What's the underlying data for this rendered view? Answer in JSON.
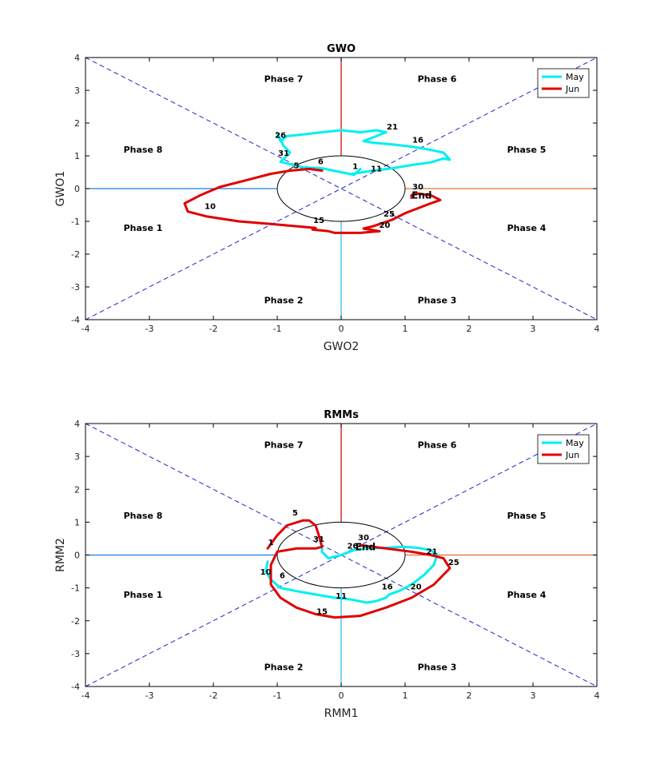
{
  "chart_data": [
    {
      "type": "line",
      "title": "GWO",
      "xlabel": "GWO2",
      "ylabel": "GWO1",
      "xlim": [
        -4,
        4
      ],
      "ylim": [
        -4,
        4
      ],
      "xticks": [
        "-4",
        "-3",
        "-2",
        "-1",
        "0",
        "1",
        "2",
        "3",
        "4"
      ],
      "yticks": [
        "4",
        "3",
        "2",
        "1",
        "0",
        "-1",
        "-2",
        "-3",
        "-4"
      ],
      "grid": false,
      "legend": "top-right",
      "phase_labels": [
        {
          "text": "Phase 7",
          "x": -0.9,
          "y": 3.35
        },
        {
          "text": "Phase 6",
          "x": 1.5,
          "y": 3.35
        },
        {
          "text": "Phase 8",
          "x": -3.1,
          "y": 1.2
        },
        {
          "text": "Phase 5",
          "x": 2.9,
          "y": 1.2
        },
        {
          "text": "Phase 1",
          "x": -3.1,
          "y": -1.2
        },
        {
          "text": "Phase 4",
          "x": 2.9,
          "y": -1.2
        },
        {
          "text": "Phase 2",
          "x": -0.9,
          "y": -3.4
        },
        {
          "text": "Phase 3",
          "x": 1.5,
          "y": -3.4
        }
      ],
      "series": [
        {
          "name": "May",
          "color": "#00f0f0",
          "x": [
            0.17,
            0.5,
            0.8,
            1.1,
            1.4,
            1.6,
            1.7,
            1.6,
            1.35,
            1.1,
            0.8,
            0.5,
            0.35,
            0.55,
            0.7,
            0.55,
            0.3,
            0.0,
            -0.3,
            -0.6,
            -0.85,
            -0.95,
            -1.0,
            -0.9,
            -0.8,
            -0.95,
            -0.6,
            -0.3,
            0.0,
            0.2,
            0.3
          ],
          "y": [
            0.45,
            0.55,
            0.62,
            0.72,
            0.8,
            0.92,
            0.88,
            1.1,
            1.2,
            1.28,
            1.35,
            1.4,
            1.45,
            1.6,
            1.72,
            1.78,
            1.72,
            1.78,
            1.72,
            1.65,
            1.6,
            1.45,
            1.7,
            1.3,
            1.1,
            0.82,
            0.65,
            0.62,
            0.5,
            0.42,
            0.6
          ]
        },
        {
          "name": "Jun",
          "color": "#e00000",
          "x": [
            -0.3,
            -0.5,
            -0.8,
            -1.1,
            -1.5,
            -1.9,
            -2.2,
            -2.45,
            -2.4,
            -2.1,
            -1.6,
            -1.1,
            -0.7,
            -0.4,
            -0.45,
            -0.2,
            -0.1,
            0.3,
            0.6,
            0.35,
            0.5,
            0.8,
            1.0,
            1.2,
            1.4,
            1.55,
            1.4,
            1.2,
            1.1,
            1.1
          ],
          "y": [
            0.55,
            0.6,
            0.55,
            0.45,
            0.25,
            0.05,
            -0.2,
            -0.45,
            -0.7,
            -0.85,
            -1.0,
            -1.08,
            -1.15,
            -1.2,
            -1.25,
            -1.3,
            -1.35,
            -1.35,
            -1.3,
            -1.22,
            -1.15,
            -0.95,
            -0.75,
            -0.6,
            -0.45,
            -0.35,
            -0.2,
            -0.15,
            -0.2,
            -0.28
          ]
        }
      ],
      "day_labels": [
        {
          "text": "1",
          "x": 0.22,
          "y": 0.6
        },
        {
          "text": "11",
          "x": 0.55,
          "y": 0.52
        },
        {
          "text": "16",
          "x": 1.2,
          "y": 1.4
        },
        {
          "text": "21",
          "x": 0.8,
          "y": 1.8
        },
        {
          "text": "26",
          "x": -0.95,
          "y": 1.55
        },
        {
          "text": "31",
          "x": -0.9,
          "y": 1.0
        },
        {
          "text": "5",
          "x": -0.7,
          "y": 0.62
        },
        {
          "text": "6",
          "x": -0.32,
          "y": 0.75
        },
        {
          "text": "10",
          "x": -2.05,
          "y": -0.62
        },
        {
          "text": "15",
          "x": -0.35,
          "y": -1.05
        },
        {
          "text": "20",
          "x": 0.68,
          "y": -1.2
        },
        {
          "text": "25",
          "x": 0.75,
          "y": -0.85
        },
        {
          "text": "30",
          "x": 1.2,
          "y": -0.02
        },
        {
          "text": "End",
          "x": 1.26,
          "y": -0.3
        }
      ]
    },
    {
      "type": "line",
      "title": "RMMs",
      "xlabel": "RMM1",
      "ylabel": "RMM2",
      "xlim": [
        -4,
        4
      ],
      "ylim": [
        -4,
        4
      ],
      "xticks": [
        "-4",
        "-3",
        "-2",
        "-1",
        "0",
        "1",
        "2",
        "3",
        "4"
      ],
      "yticks": [
        "4",
        "3",
        "2",
        "1",
        "0",
        "-1",
        "-2",
        "-3",
        "-4"
      ],
      "grid": false,
      "legend": "top-right",
      "phase_labels": [
        {
          "text": "Phase 7",
          "x": -0.9,
          "y": 3.35
        },
        {
          "text": "Phase 6",
          "x": 1.5,
          "y": 3.35
        },
        {
          "text": "Phase 8",
          "x": -3.1,
          "y": 1.2
        },
        {
          "text": "Phase 5",
          "x": 2.9,
          "y": 1.2
        },
        {
          "text": "Phase 1",
          "x": -3.1,
          "y": -1.2
        },
        {
          "text": "Phase 4",
          "x": 2.9,
          "y": -1.2
        },
        {
          "text": "Phase 2",
          "x": -0.9,
          "y": -3.4
        },
        {
          "text": "Phase 3",
          "x": 1.5,
          "y": -3.4
        }
      ],
      "series": [
        {
          "name": "May",
          "color": "#00f0f0",
          "x": [
            -1.15,
            -1.18,
            -1.1,
            -0.95,
            -0.7,
            -0.4,
            -0.1,
            0.15,
            0.4,
            0.55,
            0.7,
            0.75,
            0.9,
            1.1,
            1.3,
            1.45,
            1.5,
            1.4,
            1.2,
            0.95,
            0.7,
            0.4,
            0.2,
            0.0,
            -0.2,
            -0.3,
            -0.3
          ],
          "y": [
            -0.2,
            -0.5,
            -0.75,
            -1.0,
            -1.1,
            -1.2,
            -1.3,
            -1.35,
            -1.45,
            -1.4,
            -1.3,
            -1.2,
            -1.1,
            -0.9,
            -0.6,
            -0.3,
            0.0,
            0.15,
            0.22,
            0.25,
            0.22,
            0.2,
            0.15,
            0.0,
            -0.1,
            0.1,
            0.25
          ]
        },
        {
          "name": "Jun",
          "color": "#e00000",
          "x": [
            -1.15,
            -1.0,
            -0.85,
            -0.6,
            -0.5,
            -0.4,
            -0.35,
            -0.3,
            -0.4,
            -0.7,
            -1.0,
            -1.1,
            -1.1,
            -0.95,
            -0.7,
            -0.4,
            -0.1,
            0.3,
            0.7,
            1.1,
            1.45,
            1.7,
            1.6,
            1.4,
            1.1,
            0.7,
            0.3
          ],
          "y": [
            0.2,
            0.6,
            0.9,
            1.05,
            1.05,
            0.9,
            0.6,
            0.25,
            0.2,
            0.2,
            0.1,
            -0.3,
            -0.9,
            -1.3,
            -1.6,
            -1.8,
            -1.9,
            -1.85,
            -1.6,
            -1.3,
            -0.9,
            -0.4,
            -0.1,
            0.0,
            0.1,
            0.2,
            0.3
          ]
        }
      ],
      "day_labels": [
        {
          "text": "1",
          "x": -1.1,
          "y": 0.3
        },
        {
          "text": "5",
          "x": -0.72,
          "y": 1.2
        },
        {
          "text": "31",
          "x": -0.35,
          "y": 0.4
        },
        {
          "text": "6",
          "x": -0.92,
          "y": -0.7
        },
        {
          "text": "10",
          "x": -1.18,
          "y": -0.6
        },
        {
          "text": "11",
          "x": 0.0,
          "y": -1.32
        },
        {
          "text": "15",
          "x": -0.3,
          "y": -1.8
        },
        {
          "text": "16",
          "x": 0.72,
          "y": -1.05
        },
        {
          "text": "20",
          "x": 1.17,
          "y": -1.05
        },
        {
          "text": "21",
          "x": 1.42,
          "y": 0.02
        },
        {
          "text": "25",
          "x": 1.76,
          "y": -0.3
        },
        {
          "text": "26",
          "x": 0.18,
          "y": 0.2
        },
        {
          "text": "30",
          "x": 0.35,
          "y": 0.45
        },
        {
          "text": "End",
          "x": 0.38,
          "y": 0.15
        }
      ]
    }
  ],
  "colors": {
    "may": "#00f0f0",
    "jun": "#e00000",
    "divider_dashed": "#2222cc",
    "axis_left": "#1a80e0",
    "axis_right": "#e07030",
    "axis_top": "#cc1111",
    "axis_bottom": "#33bbee"
  }
}
